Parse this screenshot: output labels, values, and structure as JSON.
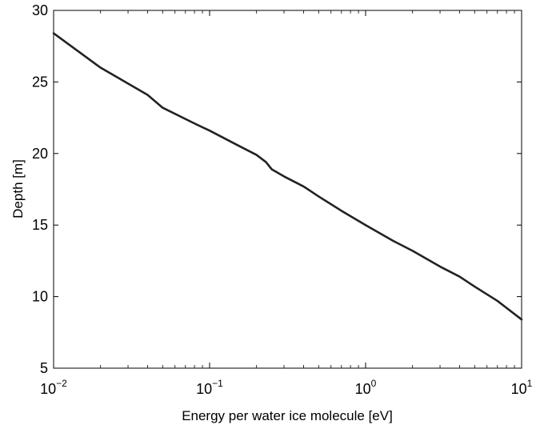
{
  "chart_data": {
    "type": "line",
    "title": "",
    "xlabel": "Energy per water ice molecule [eV]",
    "ylabel": "Depth [m]",
    "x_scale": "log",
    "xlim": [
      0.01,
      10
    ],
    "ylim": [
      5,
      30
    ],
    "x_ticks": [
      {
        "value": 0.01,
        "base": "10",
        "exp": "−2"
      },
      {
        "value": 0.1,
        "base": "10",
        "exp": "−1"
      },
      {
        "value": 1,
        "base": "10",
        "exp": "0"
      },
      {
        "value": 10,
        "base": "10",
        "exp": "1"
      }
    ],
    "y_ticks": [
      5,
      10,
      15,
      20,
      25,
      30
    ],
    "grid": false,
    "line_color": "#222222",
    "series": [
      {
        "x": [
          0.01,
          0.02,
          0.04,
          0.05,
          0.08,
          0.1,
          0.15,
          0.2,
          0.23,
          0.25,
          0.3,
          0.4,
          0.5,
          0.7,
          1,
          1.5,
          2,
          3,
          4,
          5,
          7,
          10
        ],
        "y": [
          28.4,
          26.0,
          24.1,
          23.2,
          22.1,
          21.6,
          20.6,
          19.9,
          19.4,
          18.9,
          18.4,
          17.7,
          17.0,
          16.0,
          15.0,
          13.9,
          13.2,
          12.1,
          11.4,
          10.7,
          9.7,
          8.4
        ]
      }
    ]
  }
}
